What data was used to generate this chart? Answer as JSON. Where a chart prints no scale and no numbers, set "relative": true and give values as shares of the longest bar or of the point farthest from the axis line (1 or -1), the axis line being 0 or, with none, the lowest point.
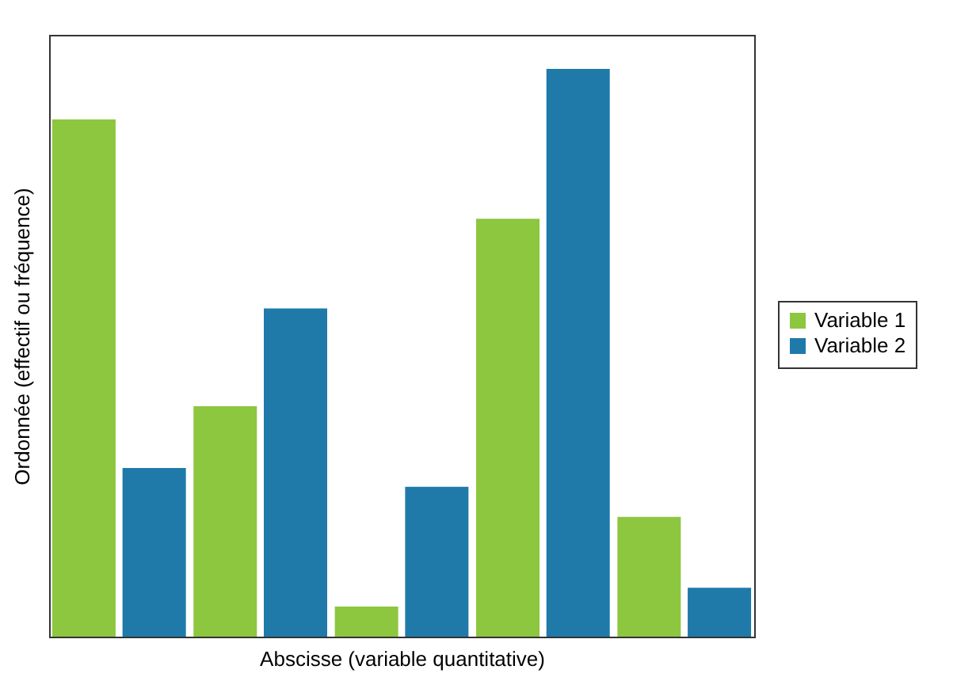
{
  "chart_data": {
    "type": "bar",
    "relative": true,
    "xlabel": "Abscisse (variable quantitative)",
    "ylabel": "Ordonnée (effectif ou fréquence)",
    "categories": [
      null,
      null,
      null,
      null,
      null
    ],
    "legend": "right",
    "grid": false,
    "series": [
      {
        "name": "Variable 1",
        "color": "#8dc63f",
        "values": [
          0.911,
          0.406,
          0.053,
          0.736,
          0.211
        ]
      },
      {
        "name": "Variable 2",
        "color": "#1f7aaa",
        "values": [
          0.297,
          0.578,
          0.264,
          1,
          0.086
        ]
      }
    ]
  }
}
